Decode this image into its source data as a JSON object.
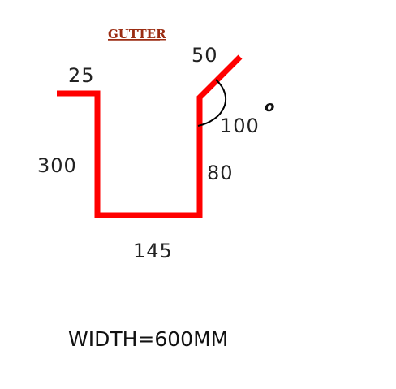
{
  "title": "GUTTER",
  "profile_color": "#ff0000",
  "dimensions": {
    "flange_left": "25",
    "left_height": "300",
    "base": "145",
    "right_height": "80",
    "lip": "50",
    "angle": "100",
    "angle_unit": "o"
  },
  "width_label": "WIDTH=600MM"
}
